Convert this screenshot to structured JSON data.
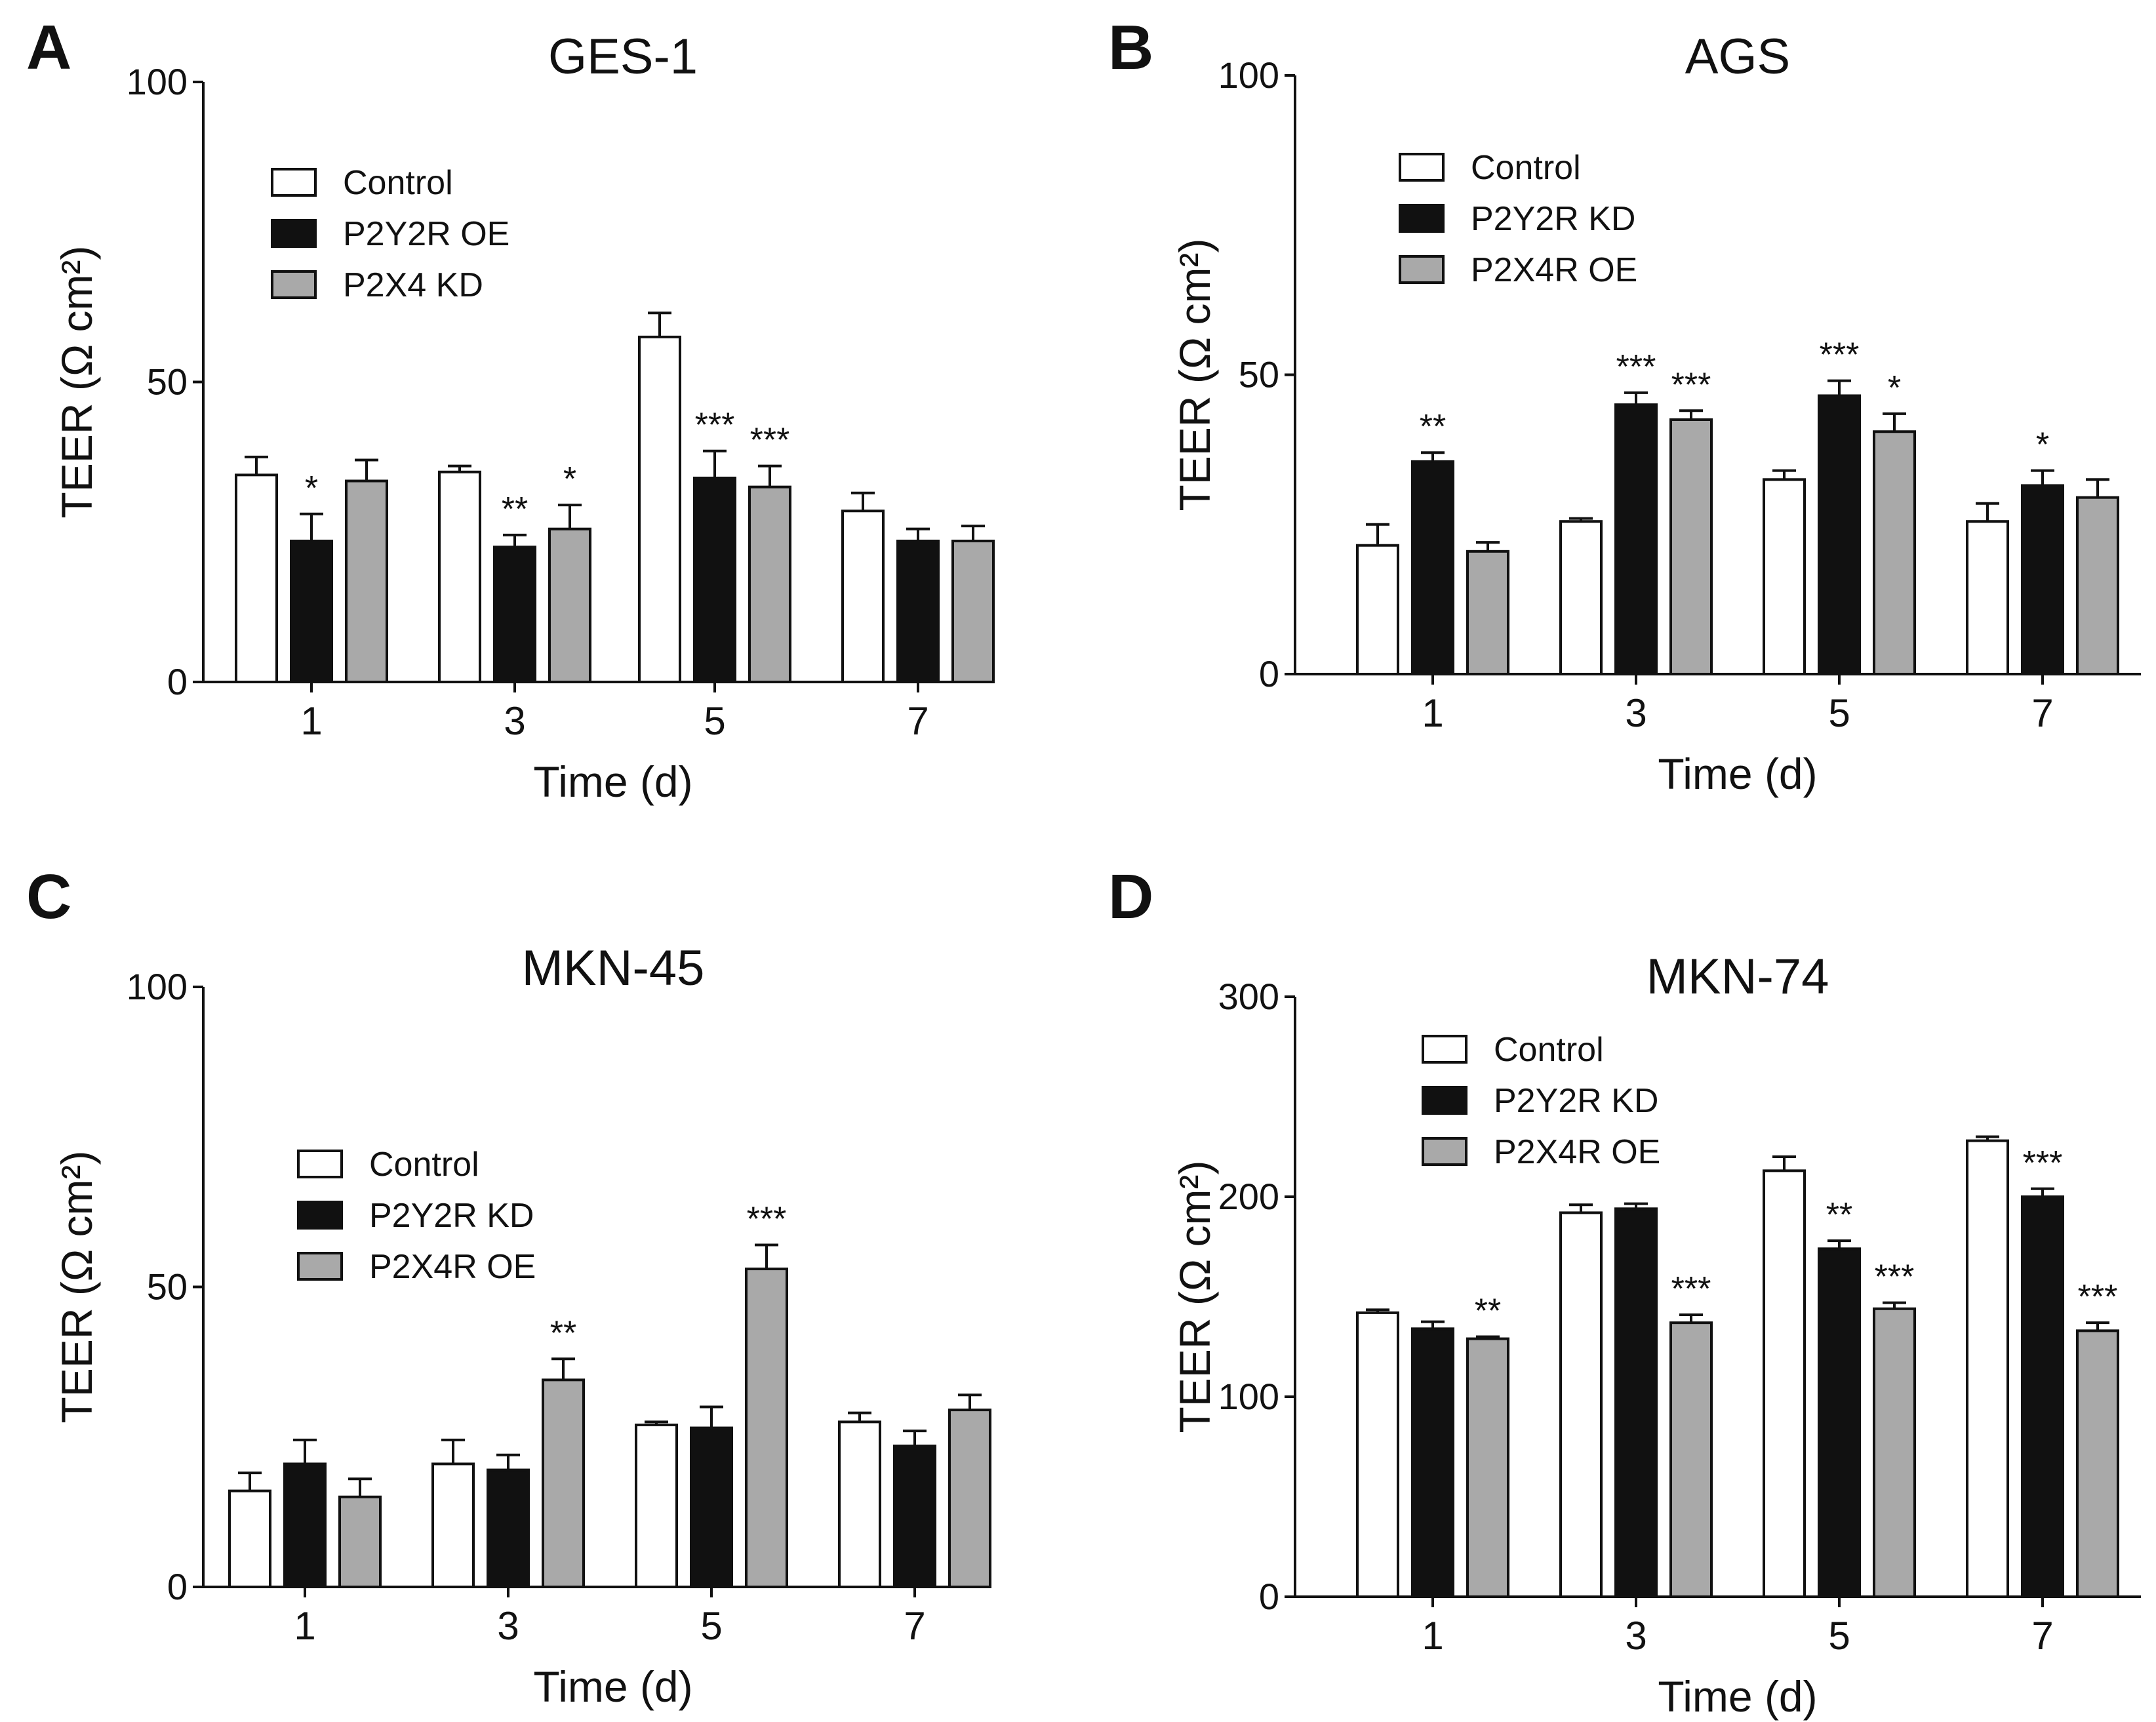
{
  "colors": {
    "Control": "#ffffff",
    "P2Y2R": "#111111",
    "P2X4": "#a9a9a9",
    "outline": "#111111"
  },
  "chart_data": [
    {
      "type": "bar",
      "panel": "A",
      "title": "GES-1",
      "xlabel": "Time (d)",
      "ylabel": "TEER (Ω cm²)",
      "categories": [
        "1",
        "3",
        "5",
        "7"
      ],
      "ylim": [
        0,
        100
      ],
      "yticks": [
        "0",
        "50",
        "100"
      ],
      "legend_position": "top-left",
      "series": [
        {
          "name": "Control",
          "values": [
            34.5,
            35,
            57.5,
            28.5
          ],
          "errors": [
            3,
            1,
            4,
            3
          ],
          "sig": [
            "",
            "",
            "",
            ""
          ]
        },
        {
          "name": "P2Y2R OE",
          "values": [
            23.5,
            22.5,
            34,
            23.5
          ],
          "errors": [
            4.5,
            2,
            4.5,
            2
          ],
          "sig": [
            "*",
            "**",
            "***",
            ""
          ]
        },
        {
          "name": "P2X4 KD",
          "values": [
            33.5,
            25.5,
            32.5,
            23.5
          ],
          "errors": [
            3.5,
            4,
            3.5,
            2.5
          ],
          "sig": [
            "",
            "*",
            "***",
            ""
          ]
        }
      ]
    },
    {
      "type": "bar",
      "panel": "B",
      "title": "AGS",
      "xlabel": "Time (d)",
      "ylabel": "TEER (Ω cm²)",
      "categories": [
        "1",
        "3",
        "5",
        "7"
      ],
      "ylim": [
        0,
        100
      ],
      "yticks": [
        "0",
        "50",
        "100"
      ],
      "legend_position": "top-left",
      "series": [
        {
          "name": "Control",
          "values": [
            21.5,
            25.5,
            32.5,
            25.5
          ],
          "errors": [
            3.5,
            0.5,
            1.5,
            3
          ],
          "sig": [
            "",
            "",
            "",
            ""
          ]
        },
        {
          "name": "P2Y2R  KD",
          "values": [
            35.5,
            45,
            46.5,
            31.5
          ],
          "errors": [
            1.5,
            2,
            2.5,
            2.5
          ],
          "sig": [
            "**",
            "***",
            "***",
            "*"
          ]
        },
        {
          "name": "P2X4R OE",
          "values": [
            20.5,
            42.5,
            40.5,
            29.5
          ],
          "errors": [
            1.5,
            1.5,
            3,
            3
          ],
          "sig": [
            "",
            "***",
            "*",
            ""
          ]
        }
      ]
    },
    {
      "type": "bar",
      "panel": "C",
      "title": "MKN-45",
      "xlabel": "Time (d)",
      "ylabel": "TEER (Ω cm²)",
      "categories": [
        "1",
        "3",
        "5",
        "7"
      ],
      "ylim": [
        0,
        100
      ],
      "yticks": [
        "0",
        "50",
        "100"
      ],
      "legend_position": "center-left",
      "series": [
        {
          "name": "Control",
          "values": [
            16,
            20.5,
            27,
            27.5
          ],
          "errors": [
            3,
            4,
            0.5,
            1.5
          ],
          "sig": [
            "",
            "",
            "",
            ""
          ]
        },
        {
          "name": "P2Y2R KD",
          "values": [
            20.5,
            19.5,
            26.5,
            23.5
          ],
          "errors": [
            4,
            2.5,
            3.5,
            2.5
          ],
          "sig": [
            "",
            "",
            "",
            ""
          ]
        },
        {
          "name": "P2X4R OE",
          "values": [
            15,
            34.5,
            53,
            29.5
          ],
          "errors": [
            3,
            3.5,
            4,
            2.5
          ],
          "sig": [
            "",
            "**",
            "***",
            ""
          ]
        }
      ]
    },
    {
      "type": "bar",
      "panel": "D",
      "title": "MKN-74",
      "xlabel": "Time (d)",
      "ylabel": "TEER (Ω cm²)",
      "categories": [
        "1",
        "3",
        "5",
        "7"
      ],
      "ylim": [
        0,
        300
      ],
      "yticks": [
        "0",
        "100",
        "200",
        "300"
      ],
      "legend_position": "top-left",
      "series": [
        {
          "name": "Control",
          "values": [
            142,
            192,
            213,
            228
          ],
          "errors": [
            1.5,
            4,
            7,
            2
          ],
          "sig": [
            "",
            "",
            "",
            ""
          ]
        },
        {
          "name": "P2Y2R KD",
          "values": [
            134,
            194,
            174,
            200
          ],
          "errors": [
            3.5,
            2.5,
            4,
            4
          ],
          "sig": [
            "",
            "",
            "**",
            "***"
          ]
        },
        {
          "name": "P2X4R OE",
          "values": [
            129,
            137,
            144,
            133
          ],
          "errors": [
            1,
            4,
            3,
            4
          ],
          "sig": [
            "**",
            "***",
            "***",
            "***"
          ]
        }
      ]
    }
  ]
}
